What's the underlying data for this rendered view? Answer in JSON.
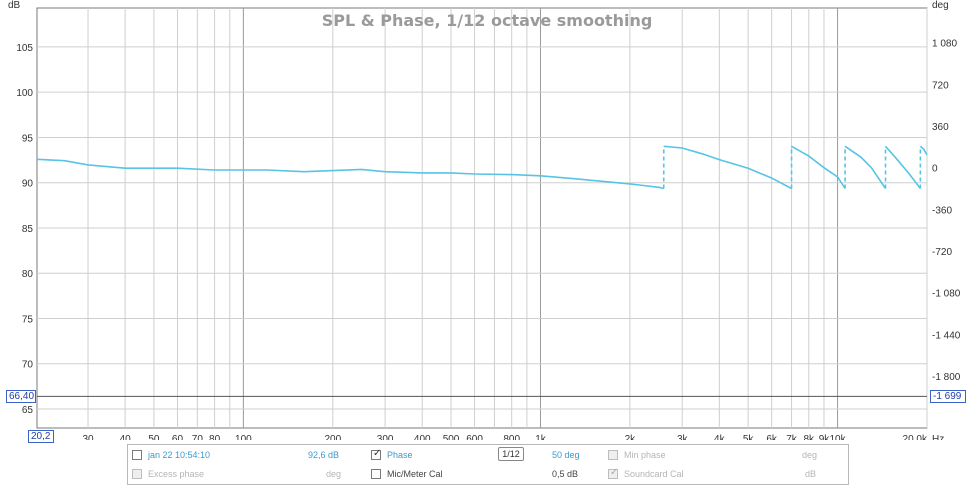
{
  "chart_data": {
    "type": "line",
    "title": "SPL & Phase, 1/12 octave smoothing",
    "xscale": "log",
    "xlim": [
      20.2,
      20000
    ],
    "ylim_left": [
      62.9,
      109.3
    ],
    "ylim_right": [
      -2250,
      1380
    ],
    "left_axis_label": "dB",
    "right_axis_label": "deg",
    "x_unit_label": "Hz",
    "x_tick_labels": [
      {
        "v": 30,
        "t": "30"
      },
      {
        "v": 40,
        "t": "40"
      },
      {
        "v": 50,
        "t": "50"
      },
      {
        "v": 60,
        "t": "60"
      },
      {
        "v": 70,
        "t": "70"
      },
      {
        "v": 80,
        "t": "80"
      },
      {
        "v": 100,
        "t": "100"
      },
      {
        "v": 200,
        "t": "200"
      },
      {
        "v": 300,
        "t": "300"
      },
      {
        "v": 400,
        "t": "400"
      },
      {
        "v": 500,
        "t": "500"
      },
      {
        "v": 600,
        "t": "600"
      },
      {
        "v": 800,
        "t": "800"
      },
      {
        "v": 1000,
        "t": "1k"
      },
      {
        "v": 2000,
        "t": "2k"
      },
      {
        "v": 3000,
        "t": "3k"
      },
      {
        "v": 4000,
        "t": "4k"
      },
      {
        "v": 5000,
        "t": "5k"
      },
      {
        "v": 6000,
        "t": "6k"
      },
      {
        "v": 7000,
        "t": "7k"
      },
      {
        "v": 8000,
        "t": "8k"
      },
      {
        "v": 9000,
        "t": "9k"
      },
      {
        "v": 10000,
        "t": "10k"
      },
      {
        "v": 20000,
        "t": "20,0k"
      }
    ],
    "left_ticks": [
      105,
      100,
      95,
      90,
      85,
      80,
      75,
      70,
      65
    ],
    "right_ticks": [
      {
        "v": 1080,
        "t": "1 080"
      },
      {
        "v": 720,
        "t": "720"
      },
      {
        "v": 360,
        "t": "360"
      },
      {
        "v": 0,
        "t": "0"
      },
      {
        "v": -360,
        "t": "-360"
      },
      {
        "v": -720,
        "t": "-720"
      },
      {
        "v": -1080,
        "t": "-1 080"
      },
      {
        "v": -1440,
        "t": "-1 440"
      },
      {
        "v": -1800,
        "t": "-1 800"
      }
    ],
    "series": [
      {
        "name": "Phase",
        "color": "#57c4e5",
        "unit": "deg",
        "segments": [
          [
            [
              20.2,
              72
            ],
            [
              25,
              60
            ],
            [
              30,
              24
            ],
            [
              40,
              -5
            ],
            [
              60,
              -5
            ],
            [
              80,
              -20
            ],
            [
              120,
              -20
            ],
            [
              160,
              -35
            ],
            [
              200,
              -25
            ],
            [
              250,
              -15
            ],
            [
              300,
              -35
            ],
            [
              400,
              -45
            ],
            [
              500,
              -45
            ],
            [
              600,
              -55
            ],
            [
              800,
              -60
            ],
            [
              1000,
              -70
            ],
            [
              1300,
              -95
            ],
            [
              2000,
              -140
            ],
            [
              2500,
              -170
            ],
            [
              2600,
              -180
            ]
          ],
          [
            [
              2600,
              185
            ],
            [
              3000,
              170
            ],
            [
              3500,
              120
            ],
            [
              4000,
              70
            ],
            [
              5000,
              -5
            ],
            [
              6000,
              -90
            ],
            [
              7000,
              -180
            ]
          ],
          [
            [
              7000,
              185
            ],
            [
              8000,
              100
            ],
            [
              9000,
              0
            ],
            [
              10000,
              -80
            ],
            [
              10600,
              -180
            ]
          ],
          [
            [
              10600,
              185
            ],
            [
              12000,
              90
            ],
            [
              13000,
              0
            ],
            [
              14500,
              -180
            ]
          ],
          [
            [
              14500,
              185
            ],
            [
              16000,
              60
            ],
            [
              17500,
              -60
            ],
            [
              19000,
              -180
            ]
          ],
          [
            [
              19000,
              185
            ],
            [
              19500,
              160
            ],
            [
              20000,
              110
            ]
          ]
        ]
      }
    ],
    "cursor": {
      "x": "20,2",
      "y_left": "66,40",
      "y_right": "-1 699",
      "y_value": 66.4
    }
  },
  "legend": {
    "rows": [
      {
        "label": "jan 22 10:54:10",
        "value": "92,6 dB",
        "checked": false,
        "enabled": true
      },
      {
        "label": "Excess phase",
        "value": "deg",
        "checked": false,
        "enabled": false
      },
      {
        "label": "Phase",
        "value": "50 deg",
        "checked": true,
        "enabled": true
      },
      {
        "label": "Mic/Meter Cal",
        "value": "0,5 dB",
        "checked": false,
        "enabled": true
      },
      {
        "label": "Min phase",
        "value": "deg",
        "checked": false,
        "enabled": false
      },
      {
        "label": "Soundcard Cal",
        "value": "dB",
        "checked": true,
        "enabled": false
      }
    ],
    "smoothing": "1/12"
  },
  "colors": {
    "trace": "#57c4e5",
    "grid": "#c8c8c8",
    "cursor_box": "#3a62c9"
  }
}
